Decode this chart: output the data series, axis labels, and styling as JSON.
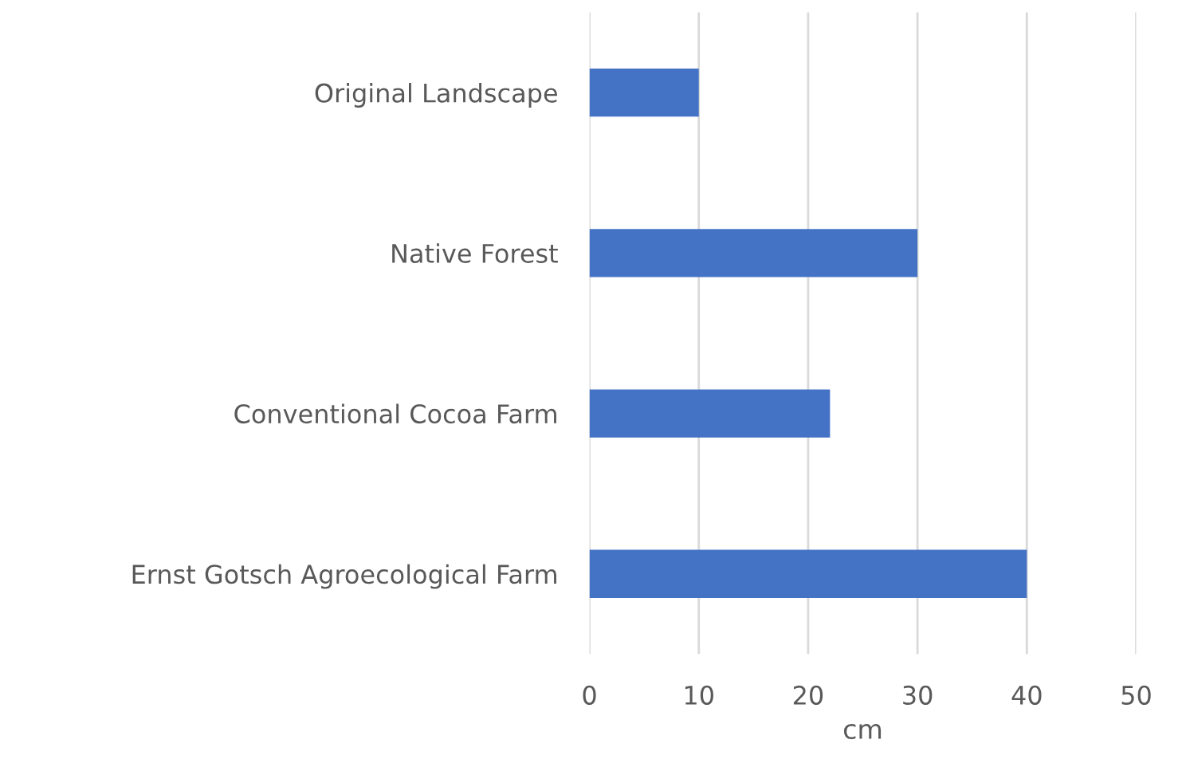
{
  "chart_data": {
    "type": "bar",
    "orientation": "horizontal",
    "categories": [
      "Original Landscape",
      "Native Forest",
      "Conventional Cocoa Farm",
      "Ernst Gotsch Agroecological Farm"
    ],
    "values": [
      10,
      30,
      22,
      40
    ],
    "color": "#4472c4",
    "xlabel": "cm",
    "xlim": [
      0,
      50
    ],
    "xticks": [
      0,
      10,
      20,
      30,
      40,
      50
    ],
    "grid": "x"
  }
}
